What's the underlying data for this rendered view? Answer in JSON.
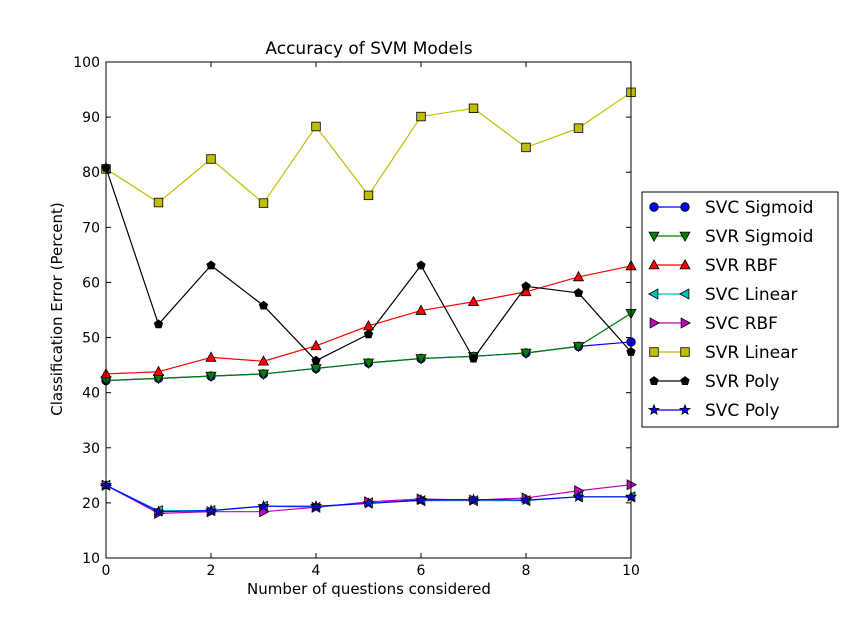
{
  "chart_data": {
    "type": "line",
    "title": "Accuracy of SVM Models",
    "xlabel": "Number of questions considered",
    "ylabel": "Classification Error (Percent)",
    "xlim": [
      0,
      10
    ],
    "ylim": [
      10,
      100
    ],
    "xticks": [
      "0",
      "2",
      "4",
      "6",
      "8",
      "10"
    ],
    "yticks": [
      "10",
      "20",
      "30",
      "40",
      "50",
      "60",
      "70",
      "80",
      "90",
      "100"
    ],
    "grid": false,
    "legend_position": "right, outside plot",
    "x": [
      0,
      1,
      2,
      3,
      4,
      5,
      6,
      7,
      8,
      9,
      10
    ],
    "series": [
      {
        "name": "SVC Sigmoid",
        "color": "#0000ff",
        "marker": "circle",
        "values": [
          42.2,
          42.6,
          43.0,
          43.4,
          44.4,
          45.4,
          46.2,
          46.6,
          47.2,
          48.4,
          49.2
        ]
      },
      {
        "name": "SVR Sigmoid",
        "color": "#007f00",
        "marker": "triangle-down",
        "values": [
          42.2,
          42.6,
          43.0,
          43.4,
          44.4,
          45.4,
          46.2,
          46.6,
          47.2,
          48.4,
          54.4
        ]
      },
      {
        "name": "SVR RBF",
        "color": "#ff0000",
        "marker": "triangle-up",
        "values": [
          43.4,
          43.8,
          46.4,
          45.7,
          48.5,
          52.1,
          54.9,
          56.5,
          58.3,
          61.0,
          63.0
        ]
      },
      {
        "name": "SVC Linear",
        "color": "#00bfbf",
        "marker": "triangle-left",
        "values": [
          23.2,
          18.6,
          18.6,
          19.4,
          19.2,
          20.0,
          20.4,
          20.4,
          20.4,
          21.1,
          21.1
        ]
      },
      {
        "name": "SVC RBF",
        "color": "#bf00bf",
        "marker": "triangle-right",
        "values": [
          23.2,
          18.1,
          18.4,
          18.4,
          19.2,
          20.2,
          20.7,
          20.5,
          20.9,
          22.2,
          23.3
        ]
      },
      {
        "name": "SVR Linear",
        "color": "#bfbf00",
        "marker": "square",
        "values": [
          80.6,
          74.5,
          82.4,
          74.4,
          88.3,
          75.8,
          90.1,
          91.6,
          84.5,
          88.0,
          94.5
        ]
      },
      {
        "name": "SVR Poly",
        "color": "#000000",
        "marker": "pentagon",
        "values": [
          80.8,
          52.4,
          63.1,
          55.8,
          45.8,
          50.6,
          63.1,
          46.2,
          59.3,
          58.1,
          47.4
        ]
      },
      {
        "name": "SVC Poly",
        "color": "#0000ff",
        "marker": "star",
        "values": [
          23.2,
          18.4,
          18.6,
          19.4,
          19.4,
          19.9,
          20.5,
          20.6,
          20.5,
          21.1,
          21.1
        ]
      }
    ]
  }
}
